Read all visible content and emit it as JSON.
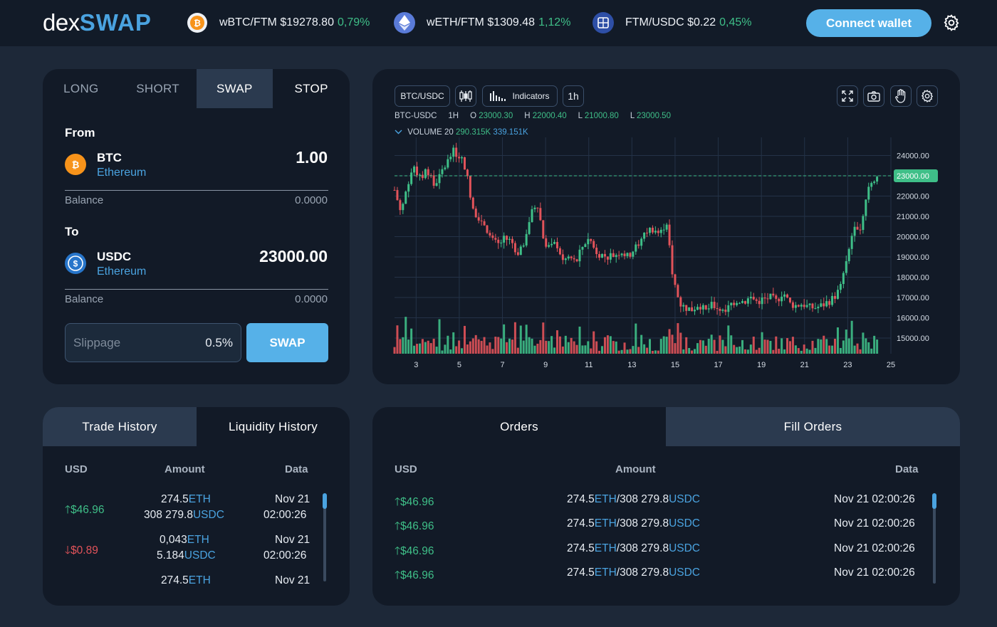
{
  "header": {
    "logo_dex": "dex",
    "logo_swap": "SWAP",
    "tickers": [
      {
        "icon": "btc-icon",
        "pair": "wBTC/FTM",
        "price": "$19278.80",
        "change": "0,79%"
      },
      {
        "icon": "eth-icon",
        "pair": "wETH/FTM",
        "price": "$1309.48",
        "change": "1,12%"
      },
      {
        "icon": "ftm-icon",
        "pair": "FTM/USDC",
        "price": "$0.22",
        "change": "0,45%"
      }
    ],
    "connect_label": "Connect wallet",
    "settings_icon": "gear-icon"
  },
  "swap_panel": {
    "tabs": [
      "LONG",
      "SHORT",
      "SWAP",
      "STOP"
    ],
    "active_tab": "SWAP",
    "from": {
      "label": "From",
      "token": "BTC",
      "network": "Ethereum",
      "amount": "1.00",
      "balance_label": "Balance",
      "balance": "0.0000",
      "icon": "btc-icon"
    },
    "to": {
      "label": "To",
      "token": "USDC",
      "network": "Ethereum",
      "amount": "23000.00",
      "balance_label": "Balance",
      "balance": "0.0000",
      "icon": "usdc-icon"
    },
    "slippage_placeholder": "Slippage",
    "slippage_value": "0.5%",
    "swap_label": "SWAP"
  },
  "chart_panel": {
    "pair_button": "BTC/USDC",
    "indicators_label": "Indicators",
    "interval_button": "1h",
    "ohlc": {
      "symbol": "BTC-USDC",
      "interval": "1H",
      "o_label": "O",
      "o": "23000.30",
      "h_label": "H",
      "h": "22000.40",
      "l_label": "L",
      "l": "21000.80",
      "l2_label": "L",
      "l2": "23000.50"
    },
    "volume": {
      "label": "VOLUME 20",
      "v1": "290.315K",
      "v2": "339.151K"
    },
    "colors": {
      "up": "#3fbf88",
      "down": "#e2535a",
      "grid": "#243247"
    }
  },
  "chart_data": {
    "type": "candlestick",
    "x_ticks": [
      "3",
      "5",
      "7",
      "9",
      "11",
      "13",
      "15",
      "17",
      "19",
      "21",
      "23",
      "25"
    ],
    "y_ticks": [
      "24000.00",
      "23000.00",
      "22000.00",
      "21000.00",
      "20000.00",
      "19000.00",
      "18000.00",
      "17000.00",
      "16000.00",
      "15000.00"
    ],
    "current_price": "23000.00",
    "xlim": [
      2,
      25
    ],
    "close_path": [
      {
        "x": 2.0,
        "y": 22300
      },
      {
        "x": 2.3,
        "y": 21200
      },
      {
        "x": 2.6,
        "y": 22600
      },
      {
        "x": 2.9,
        "y": 23500
      },
      {
        "x": 3.2,
        "y": 22800
      },
      {
        "x": 3.5,
        "y": 23400
      },
      {
        "x": 3.8,
        "y": 22500
      },
      {
        "x": 4.1,
        "y": 23000
      },
      {
        "x": 4.4,
        "y": 23600
      },
      {
        "x": 4.7,
        "y": 24200
      },
      {
        "x": 5.0,
        "y": 24000
      },
      {
        "x": 5.3,
        "y": 23400
      },
      {
        "x": 5.6,
        "y": 21300
      },
      {
        "x": 5.9,
        "y": 21000
      },
      {
        "x": 6.2,
        "y": 20600
      },
      {
        "x": 6.5,
        "y": 19800
      },
      {
        "x": 6.8,
        "y": 19600
      },
      {
        "x": 7.1,
        "y": 19900
      },
      {
        "x": 7.4,
        "y": 19800
      },
      {
        "x": 7.7,
        "y": 19200
      },
      {
        "x": 8.0,
        "y": 19800
      },
      {
        "x": 8.3,
        "y": 21000
      },
      {
        "x": 8.6,
        "y": 21800
      },
      {
        "x": 8.9,
        "y": 19900
      },
      {
        "x": 9.2,
        "y": 19400
      },
      {
        "x": 9.5,
        "y": 19700
      },
      {
        "x": 9.8,
        "y": 18800
      },
      {
        "x": 10.1,
        "y": 19000
      },
      {
        "x": 10.4,
        "y": 18700
      },
      {
        "x": 10.7,
        "y": 19500
      },
      {
        "x": 11.0,
        "y": 20000
      },
      {
        "x": 11.3,
        "y": 19300
      },
      {
        "x": 11.6,
        "y": 19100
      },
      {
        "x": 11.9,
        "y": 19000
      },
      {
        "x": 12.2,
        "y": 19100
      },
      {
        "x": 12.5,
        "y": 19300
      },
      {
        "x": 12.8,
        "y": 19000
      },
      {
        "x": 13.1,
        "y": 19400
      },
      {
        "x": 13.4,
        "y": 19700
      },
      {
        "x": 13.7,
        "y": 20300
      },
      {
        "x": 14.0,
        "y": 20400
      },
      {
        "x": 14.3,
        "y": 20100
      },
      {
        "x": 14.6,
        "y": 20800
      },
      {
        "x": 14.9,
        "y": 18000
      },
      {
        "x": 15.2,
        "y": 16700
      },
      {
        "x": 15.5,
        "y": 16500
      },
      {
        "x": 15.8,
        "y": 16400
      },
      {
        "x": 16.1,
        "y": 16700
      },
      {
        "x": 16.4,
        "y": 16300
      },
      {
        "x": 16.7,
        "y": 16600
      },
      {
        "x": 17.0,
        "y": 16500
      },
      {
        "x": 17.3,
        "y": 16200
      },
      {
        "x": 17.6,
        "y": 16700
      },
      {
        "x": 17.9,
        "y": 16900
      },
      {
        "x": 18.2,
        "y": 16800
      },
      {
        "x": 18.5,
        "y": 17000
      },
      {
        "x": 18.8,
        "y": 16800
      },
      {
        "x": 19.1,
        "y": 16900
      },
      {
        "x": 19.4,
        "y": 17000
      },
      {
        "x": 19.7,
        "y": 16800
      },
      {
        "x": 20.0,
        "y": 17300
      },
      {
        "x": 20.3,
        "y": 16700
      },
      {
        "x": 20.6,
        "y": 16600
      },
      {
        "x": 20.9,
        "y": 16700
      },
      {
        "x": 21.2,
        "y": 16500
      },
      {
        "x": 21.5,
        "y": 16500
      },
      {
        "x": 21.8,
        "y": 16600
      },
      {
        "x": 22.1,
        "y": 16800
      },
      {
        "x": 22.4,
        "y": 17000
      },
      {
        "x": 22.7,
        "y": 17600
      },
      {
        "x": 23.0,
        "y": 19000
      },
      {
        "x": 23.3,
        "y": 20700
      },
      {
        "x": 23.6,
        "y": 20400
      },
      {
        "x": 23.9,
        "y": 22300
      },
      {
        "x": 24.2,
        "y": 22900
      },
      {
        "x": 24.4,
        "y": 23000
      }
    ]
  },
  "history_panel": {
    "tabs": [
      "Trade History",
      "Liquidity History"
    ],
    "active_tab": "Trade History",
    "columns": [
      "USD",
      "Amount",
      "Data"
    ],
    "rows": [
      {
        "dir": "up",
        "usd": "$46.96",
        "amt1": "274.5",
        "cur1": "ETH",
        "amt2": "308 279.8",
        "cur2": "USDC",
        "date1": "Nov 21",
        "date2": "02:00:26"
      },
      {
        "dir": "down",
        "usd": "$0.89",
        "amt1": "0,043",
        "cur1": "ETH",
        "amt2": "5.184",
        "cur2": "USDC",
        "date1": "Nov 21",
        "date2": "02:00:26"
      },
      {
        "dir": "up",
        "usd": "",
        "amt1": "274.5",
        "cur1": "ETH",
        "amt2": "",
        "cur2": "",
        "date1": "Nov 21",
        "date2": ""
      }
    ]
  },
  "orders_panel": {
    "tabs": [
      "Orders",
      "Fill Orders"
    ],
    "active_tab": "Fill Orders",
    "columns": [
      "USD",
      "Amount",
      "Data"
    ],
    "rows": [
      {
        "usd": "$46.96",
        "a1": "274.5",
        "c1": "ETH",
        "sep": "/",
        "a2": "308 279.8",
        "c2": "USDC",
        "date": "Nov 21 02:00:26"
      },
      {
        "usd": "$46.96",
        "a1": "274.5",
        "c1": "ETH",
        "sep": "/",
        "a2": "308 279.8",
        "c2": "USDC",
        "date": "Nov 21 02:00:26"
      },
      {
        "usd": "$46.96",
        "a1": "274.5",
        "c1": "ETH",
        "sep": "/",
        "a2": "308 279.8",
        "c2": "USDC",
        "date": "Nov 21 02:00:26"
      },
      {
        "usd": "$46.96",
        "a1": "274.5",
        "c1": "ETH",
        "sep": "/",
        "a2": "308 279.8",
        "c2": "USDC",
        "date": "Nov 21 02:00:26"
      }
    ]
  }
}
